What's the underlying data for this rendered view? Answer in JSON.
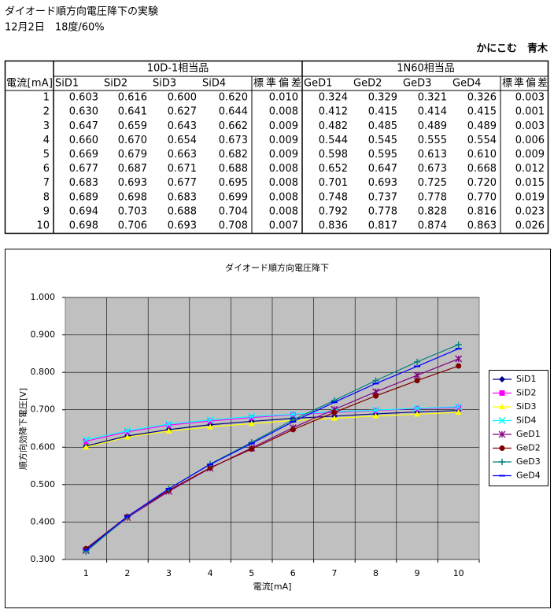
{
  "header": {
    "title": "ダイオード順方向電圧降下の実験",
    "subtitle": "12月2日　18度/60%",
    "author": "かにこむ　青木"
  },
  "table": {
    "groups": [
      "10D-1相当品",
      "1N60相当品"
    ],
    "columns": [
      "電流[mA]",
      "SiD1",
      "SiD2",
      "SiD3",
      "SiD4",
      "標準偏差",
      "GeD1",
      "GeD2",
      "GeD3",
      "GeD4",
      "標準偏差"
    ],
    "rows": [
      [
        "1",
        "0.603",
        "0.616",
        "0.600",
        "0.620",
        "0.010",
        "0.324",
        "0.329",
        "0.321",
        "0.326",
        "0.003"
      ],
      [
        "2",
        "0.630",
        "0.641",
        "0.627",
        "0.644",
        "0.008",
        "0.412",
        "0.415",
        "0.414",
        "0.415",
        "0.001"
      ],
      [
        "3",
        "0.647",
        "0.659",
        "0.643",
        "0.662",
        "0.009",
        "0.482",
        "0.485",
        "0.489",
        "0.489",
        "0.003"
      ],
      [
        "4",
        "0.660",
        "0.670",
        "0.654",
        "0.673",
        "0.009",
        "0.544",
        "0.545",
        "0.555",
        "0.554",
        "0.006"
      ],
      [
        "5",
        "0.669",
        "0.679",
        "0.663",
        "0.682",
        "0.009",
        "0.598",
        "0.595",
        "0.613",
        "0.610",
        "0.009"
      ],
      [
        "6",
        "0.677",
        "0.687",
        "0.671",
        "0.688",
        "0.008",
        "0.652",
        "0.647",
        "0.673",
        "0.668",
        "0.012"
      ],
      [
        "7",
        "0.683",
        "0.693",
        "0.677",
        "0.695",
        "0.008",
        "0.701",
        "0.693",
        "0.725",
        "0.720",
        "0.015"
      ],
      [
        "8",
        "0.689",
        "0.698",
        "0.683",
        "0.699",
        "0.008",
        "0.748",
        "0.737",
        "0.778",
        "0.770",
        "0.019"
      ],
      [
        "9",
        "0.694",
        "0.703",
        "0.688",
        "0.704",
        "0.008",
        "0.792",
        "0.778",
        "0.828",
        "0.816",
        "0.023"
      ],
      [
        "10",
        "0.698",
        "0.706",
        "0.693",
        "0.708",
        "0.007",
        "0.836",
        "0.817",
        "0.874",
        "0.863",
        "0.026"
      ]
    ]
  },
  "chart_data": {
    "type": "line",
    "title": "ダイオード順方向電圧降下",
    "x_label": "電流[mA]",
    "y_label": "順方向効降下電圧[V]",
    "categories": [
      1,
      2,
      3,
      4,
      5,
      6,
      7,
      8,
      9,
      10
    ],
    "ylim": [
      0.3,
      1.0
    ],
    "yticks": [
      {
        "value": 0.3,
        "label": "0.300"
      },
      {
        "value": 0.4,
        "label": "0.400"
      },
      {
        "value": 0.5,
        "label": "0.500"
      },
      {
        "value": 0.6,
        "label": "0.600"
      },
      {
        "value": 0.7,
        "label": "0.700"
      },
      {
        "value": 0.8,
        "label": "0.800"
      },
      {
        "value": 0.9,
        "label": "0.900"
      },
      {
        "value": 1.0,
        "label": "1.000"
      }
    ],
    "grid": true,
    "series": [
      {
        "name": "SiD1",
        "color": "#000080",
        "marker": "diamond",
        "values": [
          0.603,
          0.63,
          0.647,
          0.66,
          0.669,
          0.677,
          0.683,
          0.689,
          0.694,
          0.698
        ]
      },
      {
        "name": "SiD2",
        "color": "#ff00ff",
        "marker": "square",
        "values": [
          0.616,
          0.641,
          0.659,
          0.67,
          0.679,
          0.687,
          0.693,
          0.698,
          0.703,
          0.706
        ]
      },
      {
        "name": "SiD3",
        "color": "#ffff00",
        "marker": "triangle",
        "values": [
          0.6,
          0.627,
          0.643,
          0.654,
          0.663,
          0.671,
          0.677,
          0.683,
          0.688,
          0.693
        ]
      },
      {
        "name": "SiD4",
        "color": "#00ffff",
        "marker": "x",
        "values": [
          0.62,
          0.644,
          0.662,
          0.673,
          0.682,
          0.688,
          0.695,
          0.699,
          0.704,
          0.708
        ]
      },
      {
        "name": "GeD1",
        "color": "#800080",
        "marker": "star",
        "values": [
          0.324,
          0.412,
          0.482,
          0.544,
          0.598,
          0.652,
          0.701,
          0.748,
          0.792,
          0.836
        ]
      },
      {
        "name": "GeD2",
        "color": "#800000",
        "marker": "circle",
        "values": [
          0.329,
          0.415,
          0.485,
          0.545,
          0.595,
          0.647,
          0.693,
          0.737,
          0.778,
          0.817
        ]
      },
      {
        "name": "GeD3",
        "color": "#008080",
        "marker": "plus",
        "values": [
          0.321,
          0.414,
          0.489,
          0.555,
          0.613,
          0.673,
          0.725,
          0.778,
          0.828,
          0.874
        ]
      },
      {
        "name": "GeD4",
        "color": "#0000ff",
        "marker": "dash",
        "values": [
          0.326,
          0.415,
          0.489,
          0.554,
          0.61,
          0.668,
          0.72,
          0.77,
          0.816,
          0.863
        ]
      }
    ]
  }
}
